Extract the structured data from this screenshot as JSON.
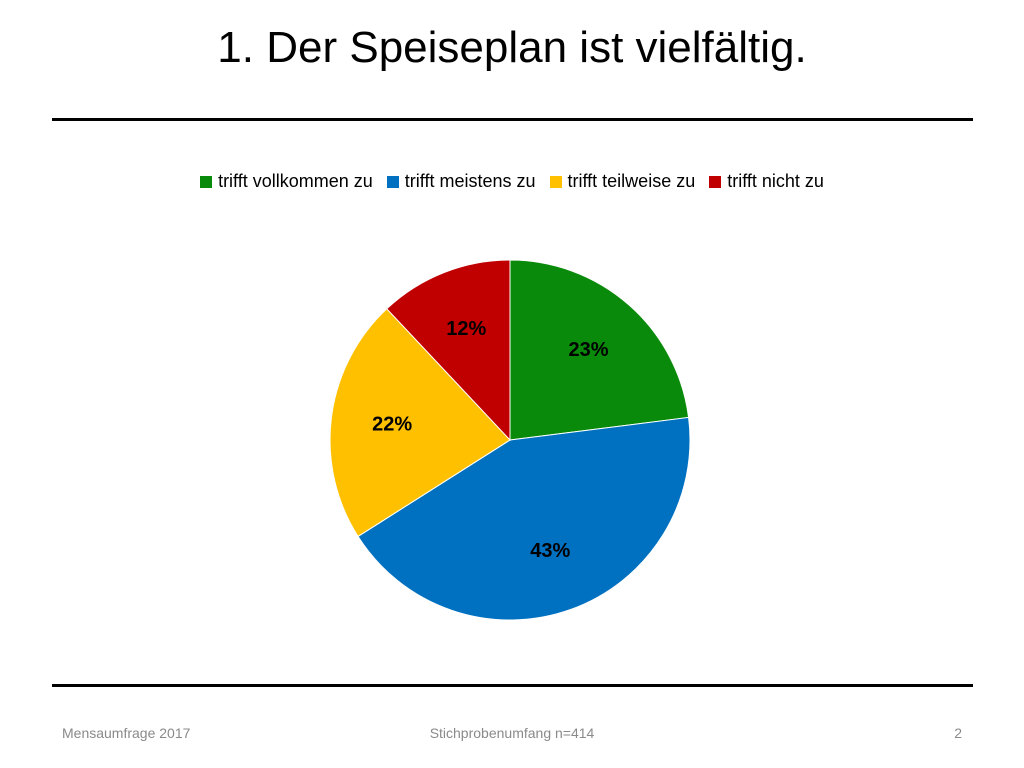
{
  "slide": {
    "title": "1. Der Speiseplan ist vielfältig.",
    "footer_left": "Mensaumfrage 2017",
    "footer_center": "Stichprobenumfang n=414",
    "page_number": "2"
  },
  "chart_data": {
    "type": "pie",
    "title": "",
    "legend_position": "top",
    "categories": [
      "trifft vollkommen zu",
      "trifft meistens zu",
      "trifft teilweise zu",
      "trifft nicht zu"
    ],
    "values": [
      23,
      43,
      22,
      12
    ],
    "labels": [
      "23%",
      "43%",
      "22%",
      "12%"
    ],
    "colors": [
      "#0a8a0a",
      "#0070c0",
      "#ffc000",
      "#c00000"
    ]
  }
}
